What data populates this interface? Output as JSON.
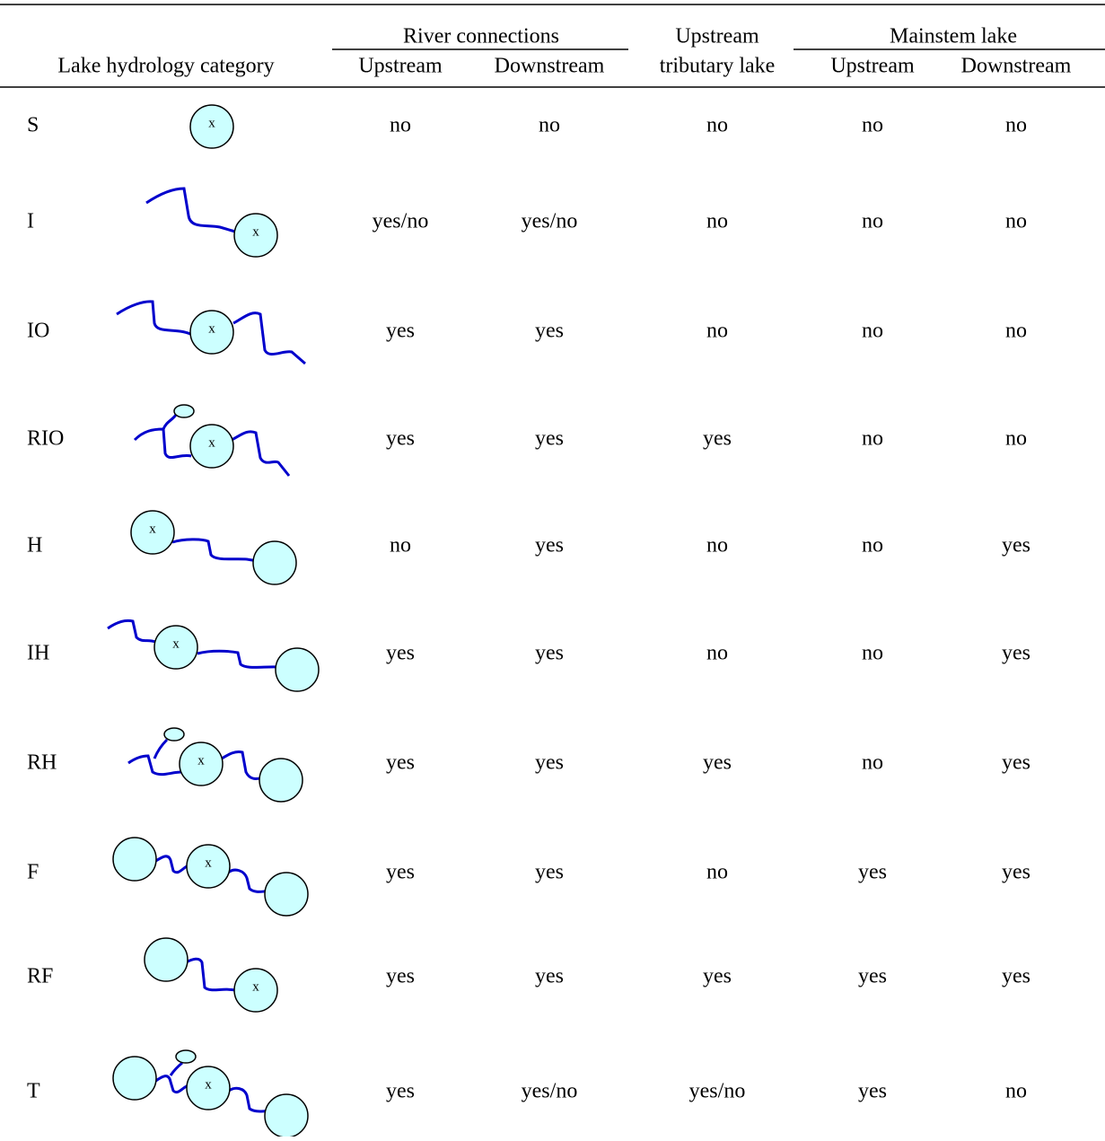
{
  "header": {
    "groups": [
      "River connections",
      "Mainstem lake"
    ],
    "columns": [
      "Lake hydrology category",
      "Upstream",
      "Downstream",
      "Upstream",
      "Downstream"
    ],
    "tributary_column": [
      "Upstream",
      "tributary lake"
    ]
  },
  "lake_marker": "x",
  "table": {
    "rows": [
      [
        "S",
        "no",
        "no",
        "no",
        "no",
        "no"
      ],
      [
        "I",
        "yes/no",
        "yes/no",
        "no",
        "no",
        "no"
      ],
      [
        "IO",
        "yes",
        "yes",
        "no",
        "no",
        "no"
      ],
      [
        "RIO",
        "yes",
        "yes",
        "yes",
        "no",
        "no"
      ],
      [
        "H",
        "no",
        "yes",
        "no",
        "no",
        "yes"
      ],
      [
        "IH",
        "yes",
        "yes",
        "no",
        "no",
        "yes"
      ],
      [
        "RH",
        "yes",
        "yes",
        "yes",
        "no",
        "yes"
      ],
      [
        "F",
        "yes",
        "yes",
        "no",
        "yes",
        "yes"
      ],
      [
        "RF",
        "yes",
        "yes",
        "yes",
        "yes",
        "yes"
      ],
      [
        "T",
        "yes",
        "yes/no",
        "yes/no",
        "yes",
        "no"
      ]
    ]
  }
}
